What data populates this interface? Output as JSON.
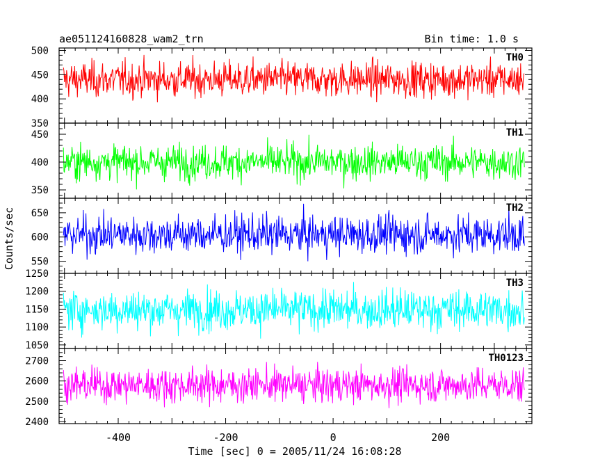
{
  "header": {
    "left_title": "ae051124160828_wam2_trn",
    "right_title": "Bin time: 1.0 s"
  },
  "chart_data": {
    "type": "line",
    "ylabel": "Counts/sec",
    "xlabel": "Time [sec] 0 = 2005/11/24 16:08:28",
    "xlim": [
      -510,
      370
    ],
    "xticks": [
      -400,
      -200,
      0,
      200
    ],
    "x_start": -502,
    "x_end": 356,
    "bin_time_s": 1.0,
    "grid": false,
    "panels": [
      {
        "name": "TH0",
        "color": "#ff0000",
        "ylim": [
          350,
          505
        ],
        "yticks": [
          350,
          400,
          450,
          500
        ],
        "mean": 440,
        "noise": 26
      },
      {
        "name": "TH1",
        "color": "#00ff00",
        "ylim": [
          335,
          470
        ],
        "yticks": [
          350,
          400,
          450
        ],
        "mean": 400,
        "noise": 22
      },
      {
        "name": "TH2",
        "color": "#0000ff",
        "ylim": [
          525,
          680
        ],
        "yticks": [
          550,
          600,
          650
        ],
        "mean": 605,
        "noise": 28
      },
      {
        "name": "TH3",
        "color": "#00ffff",
        "ylim": [
          1040,
          1250
        ],
        "yticks": [
          1050,
          1100,
          1150,
          1200,
          1250
        ],
        "mean": 1148,
        "noise": 40
      },
      {
        "name": "TH0123",
        "color": "#ff00ff",
        "ylim": [
          2390,
          2760
        ],
        "yticks": [
          2400,
          2500,
          2600,
          2700
        ],
        "mean": 2580,
        "noise": 60
      }
    ]
  }
}
